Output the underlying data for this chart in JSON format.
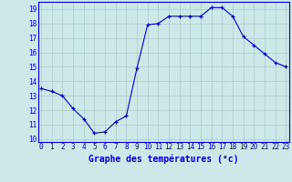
{
  "hours": [
    0,
    1,
    2,
    3,
    4,
    5,
    6,
    7,
    8,
    9,
    10,
    11,
    12,
    13,
    14,
    15,
    16,
    17,
    18,
    19,
    20,
    21,
    22,
    23
  ],
  "temps": [
    13.5,
    13.3,
    13.0,
    12.1,
    11.4,
    10.4,
    10.5,
    11.2,
    11.6,
    14.9,
    17.9,
    18.0,
    18.5,
    18.5,
    18.5,
    18.5,
    19.1,
    19.1,
    18.5,
    17.1,
    16.5,
    15.9,
    15.3,
    15.0
  ],
  "line_color": "#0000cc",
  "marker": "+",
  "marker_color": "#0000cc",
  "bg_color": "#cce8e8",
  "grid_color": "#aacccc",
  "xlabel": "Graphe des températures (°c)",
  "xlabel_color": "#0000cc",
  "ylim": [
    9.8,
    19.5
  ],
  "xlim": [
    -0.3,
    23.3
  ],
  "yticks": [
    10,
    11,
    12,
    13,
    14,
    15,
    16,
    17,
    18,
    19
  ],
  "figsize": [
    3.2,
    2.0
  ],
  "dpi": 100,
  "tick_color": "#0000cc",
  "spine_color": "#0000cc",
  "tick_fontsize": 5.5,
  "xlabel_fontsize": 7
}
